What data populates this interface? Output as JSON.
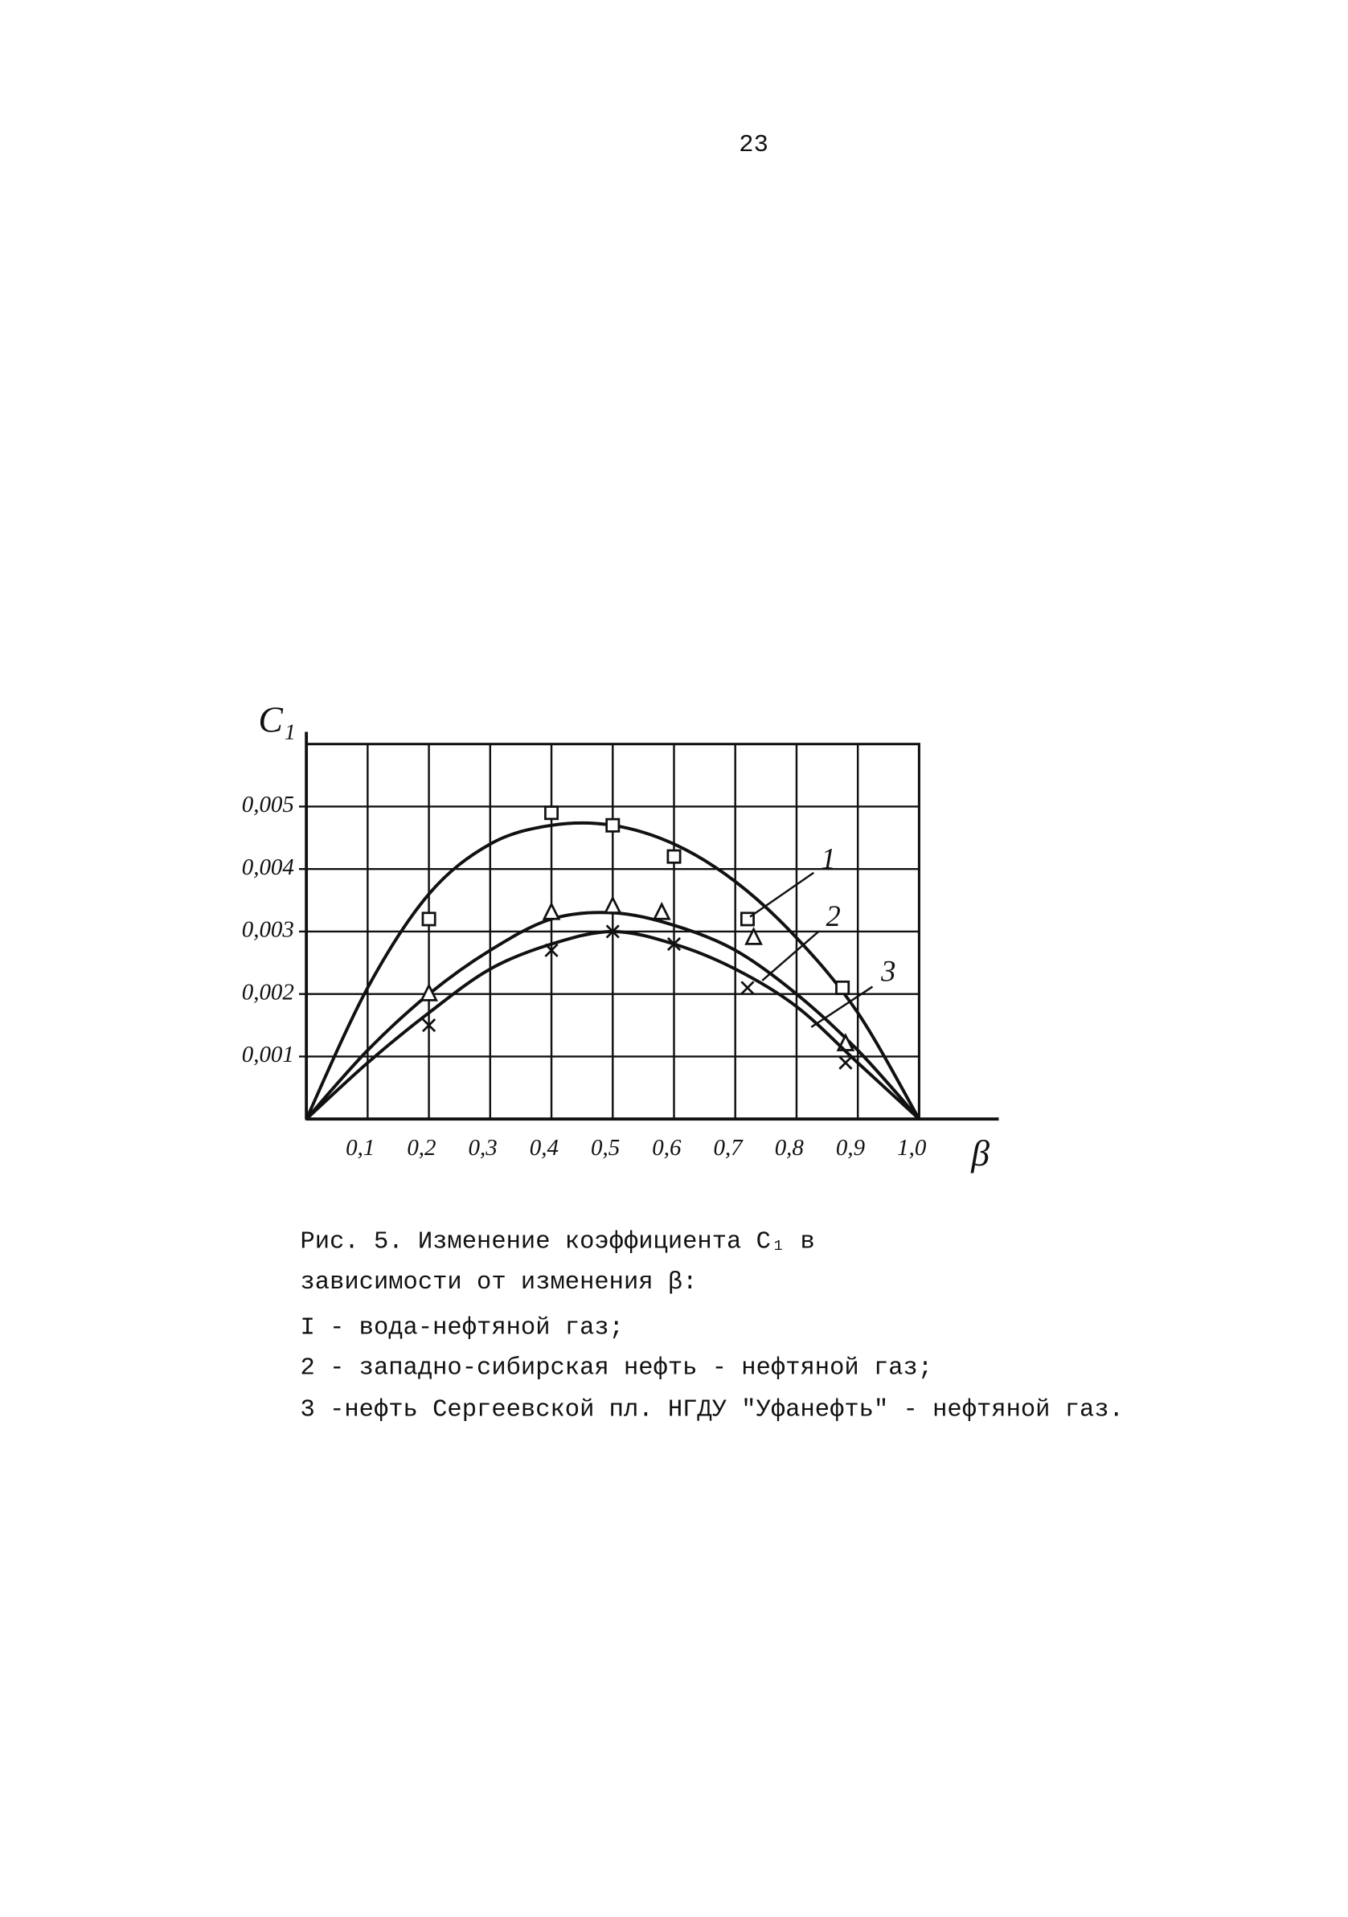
{
  "page_number": "23",
  "chart_data": {
    "type": "line",
    "y_label": "C₁",
    "x_label": "β",
    "xlim": [
      0,
      1.13
    ],
    "ylim": [
      0,
      0.006
    ],
    "xticks": [
      {
        "value": 0.1,
        "label": "0,1"
      },
      {
        "value": 0.2,
        "label": "0,2"
      },
      {
        "value": 0.3,
        "label": "0,3"
      },
      {
        "value": 0.4,
        "label": "0,4"
      },
      {
        "value": 0.5,
        "label": "0,5"
      },
      {
        "value": 0.6,
        "label": "0,6"
      },
      {
        "value": 0.7,
        "label": "0,7"
      },
      {
        "value": 0.8,
        "label": "0,8"
      },
      {
        "value": 0.9,
        "label": "0,9"
      },
      {
        "value": 1.0,
        "label": "1,0"
      }
    ],
    "yticks": [
      {
        "value": 0.001,
        "label": "0,001"
      },
      {
        "value": 0.002,
        "label": "0,002"
      },
      {
        "value": 0.003,
        "label": "0,003"
      },
      {
        "value": 0.004,
        "label": "0,004"
      },
      {
        "value": 0.005,
        "label": "0,005"
      }
    ],
    "grid": true,
    "x": [
      0,
      0.1,
      0.2,
      0.3,
      0.4,
      0.5,
      0.6,
      0.7,
      0.8,
      0.9,
      1.0
    ],
    "series": [
      {
        "name": "1",
        "color": "#111111",
        "marker": "square",
        "values": [
          0,
          0.0021,
          0.0036,
          0.0044,
          0.0047,
          0.0047,
          0.0044,
          0.0038,
          0.0029,
          0.0017,
          0
        ],
        "points_x": [
          0.2,
          0.4,
          0.5,
          0.6,
          0.72,
          0.875
        ],
        "points_y": [
          0.0032,
          0.0049,
          0.0047,
          0.0042,
          0.0032,
          0.0021
        ]
      },
      {
        "name": "2",
        "color": "#111111",
        "marker": "triangle",
        "values": [
          0,
          0.0011,
          0.002,
          0.0027,
          0.0032,
          0.0033,
          0.0031,
          0.0027,
          0.002,
          0.0011,
          0
        ],
        "points_x": [
          0.2,
          0.4,
          0.5,
          0.58,
          0.73,
          0.88
        ],
        "points_y": [
          0.002,
          0.0033,
          0.0034,
          0.0033,
          0.0029,
          0.0012
        ]
      },
      {
        "name": "3",
        "color": "#111111",
        "marker": "cross",
        "values": [
          0,
          0.0009,
          0.0017,
          0.0024,
          0.0028,
          0.003,
          0.0028,
          0.0024,
          0.0018,
          0.0009,
          0
        ],
        "points_x": [
          0.2,
          0.4,
          0.5,
          0.6,
          0.72,
          0.88
        ],
        "points_y": [
          0.0015,
          0.0027,
          0.003,
          0.0028,
          0.0021,
          0.0009
        ]
      }
    ]
  },
  "caption": {
    "lines": [
      "Рис. 5. Изменение коэффициента C₁ в",
      "зависимости от изменения β:"
    ],
    "legend": [
      "I - вода-нефтяной газ;",
      "2 - западно-сибирская нефть - нефтяной газ;",
      "3 -нефть Сергеевской пл. НГДУ \"Уфанефть\" - нефтяной газ."
    ]
  }
}
